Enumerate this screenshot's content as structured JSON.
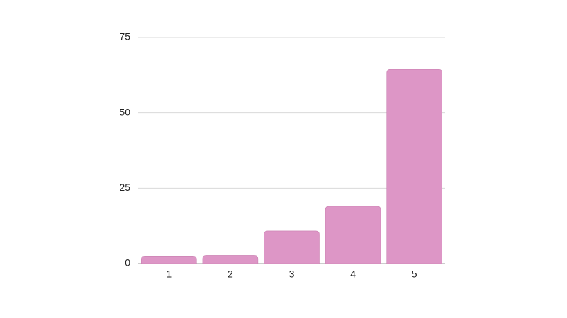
{
  "chart_data": {
    "type": "bar",
    "categories": [
      "1",
      "2",
      "3",
      "4",
      "5"
    ],
    "values": [
      2.5,
      2.7,
      10.8,
      19,
      64.4
    ],
    "color": "#dd96c6",
    "ylim": [
      0,
      75
    ],
    "yticks": [
      0,
      25,
      50,
      75
    ],
    "grid": true
  }
}
